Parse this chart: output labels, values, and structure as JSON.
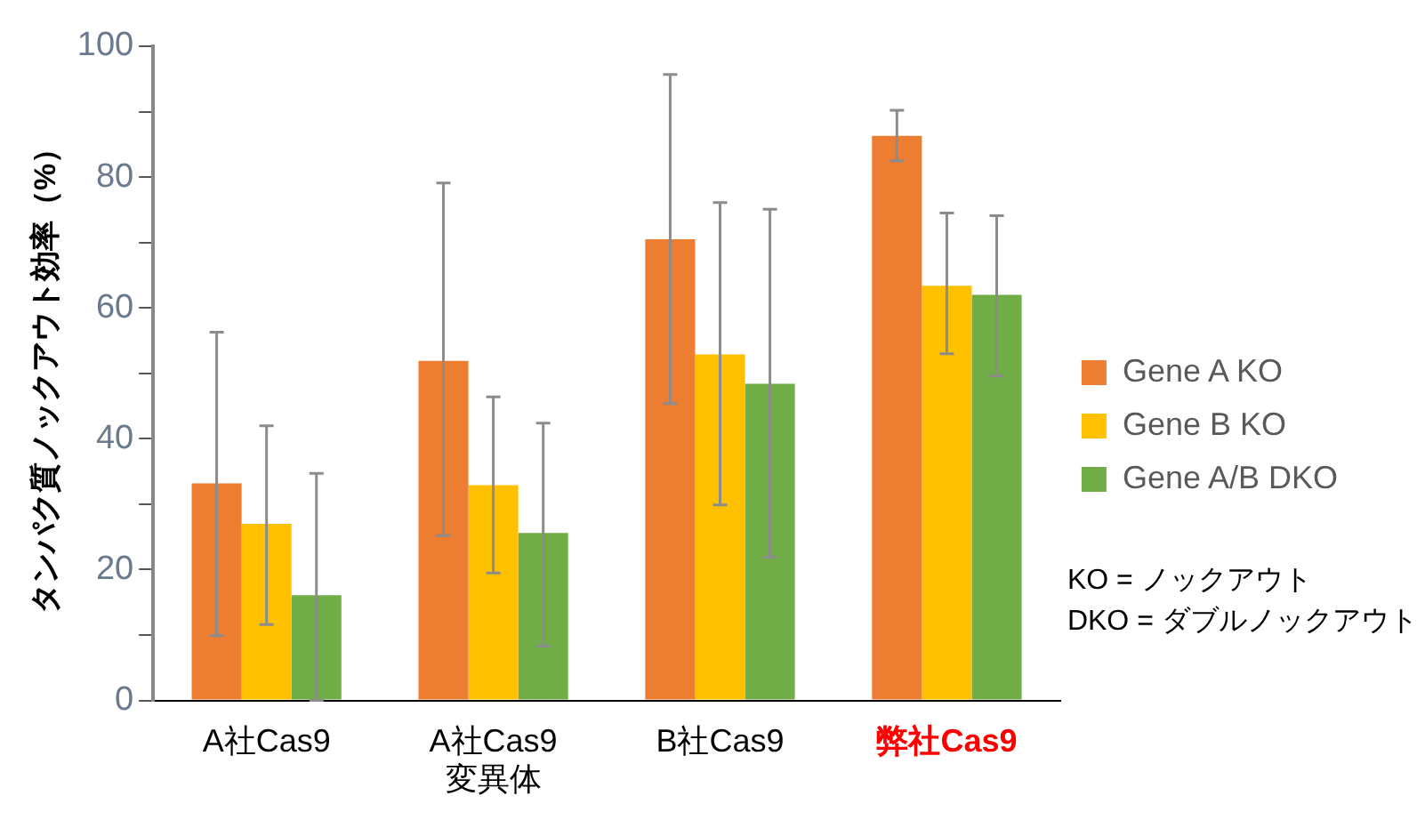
{
  "chart_data": {
    "type": "bar",
    "ylabel": "タンパク質ノックアウト効率（%）",
    "categories": [
      "A社Cas9",
      "A社Cas9\n変異体",
      "B社Cas9",
      "弊社Cas9"
    ],
    "series": [
      {
        "name": "Gene A KO",
        "color": "#ed7d31",
        "values": [
          33.2,
          51.9,
          70.5,
          86.3
        ],
        "errors": [
          [
            9.9,
            56.3
          ],
          [
            25.2,
            79.1
          ],
          [
            45.4,
            95.7
          ],
          [
            82.5,
            90.2
          ]
        ]
      },
      {
        "name": "Gene B KO",
        "color": "#ffc000",
        "values": [
          27.0,
          32.9,
          52.9,
          63.4
        ],
        "errors": [
          [
            11.6,
            42.0
          ],
          [
            19.5,
            46.4
          ],
          [
            29.9,
            76.1
          ],
          [
            53.0,
            74.5
          ]
        ]
      },
      {
        "name": "Gene A/B DKO",
        "color": "#70ad47",
        "values": [
          16.1,
          25.6,
          48.4,
          62.0
        ],
        "errors": [
          [
            0,
            34.7
          ],
          [
            8.3,
            42.4
          ],
          [
            21.9,
            75.1
          ],
          [
            49.6,
            74.1
          ]
        ]
      }
    ],
    "ylim": [
      0,
      100
    ],
    "yticks": [
      0,
      {
        "value": 10,
        "label": null
      },
      20,
      {
        "value": 30,
        "label": null
      },
      40,
      {
        "value": 50,
        "label": null
      },
      60,
      {
        "value": 70,
        "label": null
      },
      80,
      {
        "value": 90,
        "label": null
      },
      100
    ],
    "grid": false,
    "legend": "right",
    "annotations": [
      "KO = ノックアウト",
      "DKO = ダブルノックアウト"
    ]
  }
}
